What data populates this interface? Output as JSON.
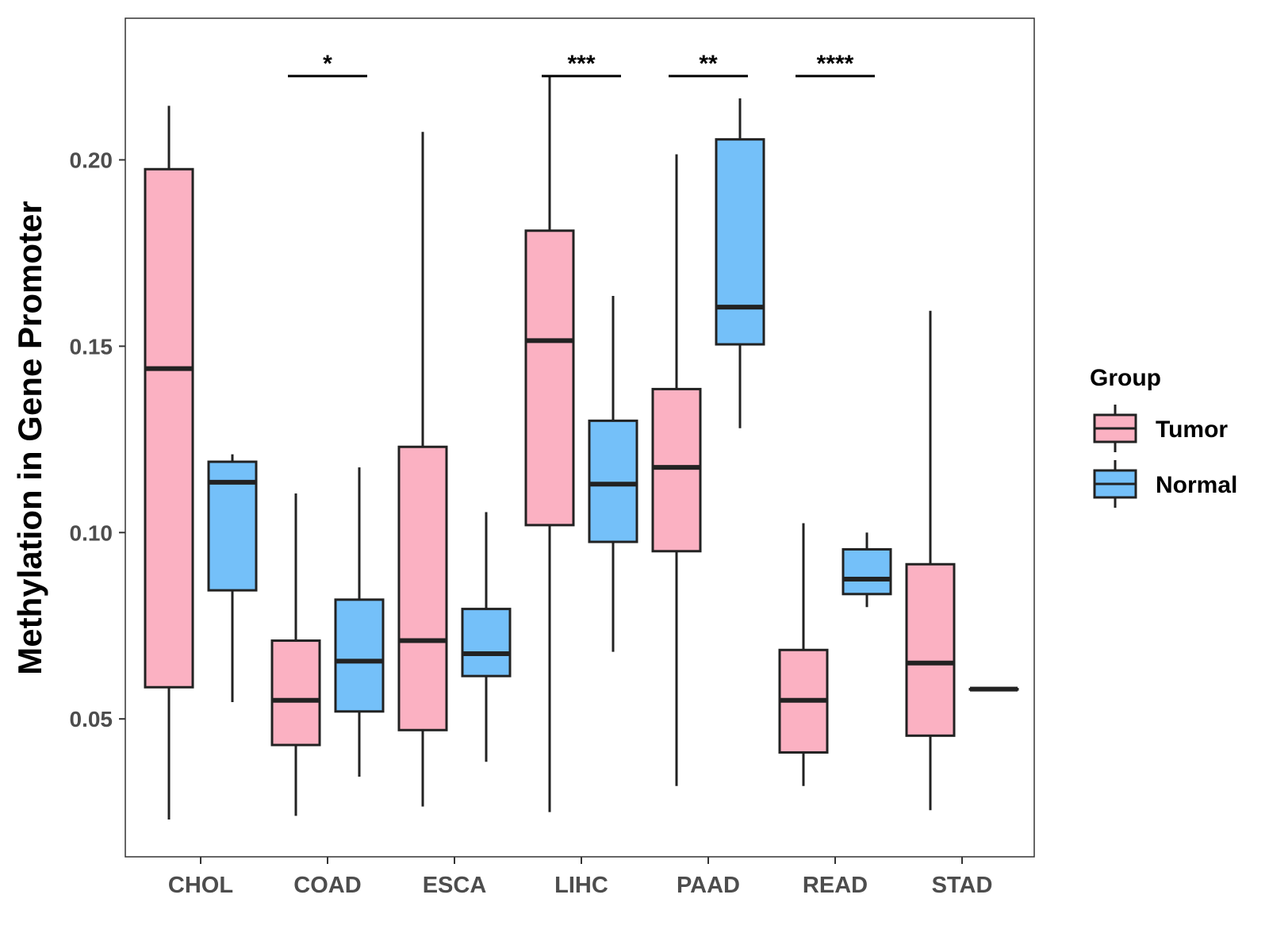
{
  "chart_data": {
    "type": "boxplot",
    "title": "",
    "xlabel": "",
    "ylabel": "Methylation in Gene Promoter",
    "ylim": [
      0.013,
      0.238
    ],
    "yticks": [
      0.05,
      0.1,
      0.15,
      0.2
    ],
    "ytick_labels": [
      "0.05",
      "0.10",
      "0.15",
      "0.20"
    ],
    "grid": false,
    "categories": [
      "CHOL",
      "COAD",
      "ESCA",
      "LIHC",
      "PAAD",
      "READ",
      "STAD"
    ],
    "legend": {
      "title": "Group",
      "position": "right",
      "entries": [
        {
          "name": "Tumor",
          "color": "#fbb1c2"
        },
        {
          "name": "Normal",
          "color": "#74c0f9"
        }
      ]
    },
    "series": [
      {
        "name": "Tumor",
        "color": "#fbb1c2",
        "boxes": [
          {
            "category": "CHOL",
            "whisker_low": 0.023,
            "q1": 0.0585,
            "median": 0.144,
            "q3": 0.1975,
            "whisker_high": 0.2145
          },
          {
            "category": "COAD",
            "whisker_low": 0.024,
            "q1": 0.043,
            "median": 0.055,
            "q3": 0.071,
            "whisker_high": 0.1105
          },
          {
            "category": "ESCA",
            "whisker_low": 0.0265,
            "q1": 0.047,
            "median": 0.071,
            "q3": 0.123,
            "whisker_high": 0.2075
          },
          {
            "category": "LIHC",
            "whisker_low": 0.025,
            "q1": 0.102,
            "median": 0.1515,
            "q3": 0.181,
            "whisker_high": 0.2225
          },
          {
            "category": "PAAD",
            "whisker_low": 0.032,
            "q1": 0.095,
            "median": 0.1175,
            "q3": 0.1385,
            "whisker_high": 0.2015
          },
          {
            "category": "READ",
            "whisker_low": 0.032,
            "q1": 0.041,
            "median": 0.055,
            "q3": 0.0685,
            "whisker_high": 0.1025
          },
          {
            "category": "STAD",
            "whisker_low": 0.0255,
            "q1": 0.0455,
            "median": 0.065,
            "q3": 0.0915,
            "whisker_high": 0.1595
          }
        ]
      },
      {
        "name": "Normal",
        "color": "#74c0f9",
        "boxes": [
          {
            "category": "CHOL",
            "whisker_low": 0.0545,
            "q1": 0.0845,
            "median": 0.1135,
            "q3": 0.119,
            "whisker_high": 0.121
          },
          {
            "category": "COAD",
            "whisker_low": 0.0345,
            "q1": 0.052,
            "median": 0.0655,
            "q3": 0.082,
            "whisker_high": 0.1175
          },
          {
            "category": "ESCA",
            "whisker_low": 0.0385,
            "q1": 0.0615,
            "median": 0.0675,
            "q3": 0.0795,
            "whisker_high": 0.1055
          },
          {
            "category": "LIHC",
            "whisker_low": 0.068,
            "q1": 0.0975,
            "median": 0.113,
            "q3": 0.13,
            "whisker_high": 0.1635
          },
          {
            "category": "PAAD",
            "whisker_low": 0.128,
            "q1": 0.1505,
            "median": 0.1605,
            "q3": 0.2055,
            "whisker_high": 0.2165
          },
          {
            "category": "READ",
            "whisker_low": 0.08,
            "q1": 0.0835,
            "median": 0.0875,
            "q3": 0.0955,
            "whisker_high": 0.1
          },
          {
            "category": "STAD",
            "whisker_low": 0.058,
            "q1": 0.058,
            "median": 0.058,
            "q3": 0.058,
            "whisker_high": 0.058
          }
        ]
      }
    ],
    "annotations": [
      {
        "category": "COAD",
        "label": "*",
        "y": 0.2225
      },
      {
        "category": "LIHC",
        "label": "***",
        "y": 0.2225
      },
      {
        "category": "PAAD",
        "label": "**",
        "y": 0.2225
      },
      {
        "category": "READ",
        "label": "****",
        "y": 0.2225
      }
    ]
  }
}
